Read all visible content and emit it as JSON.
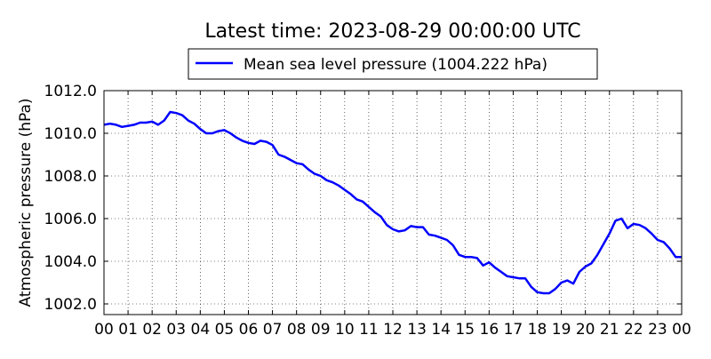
{
  "chart_data": {
    "type": "line",
    "title": "Latest time: 2023-08-29 00:00:00 UTC",
    "xlabel": "",
    "ylabel": "Atmospheric pressure (hPa)",
    "xlim": [
      0,
      24
    ],
    "ylim": [
      1001.5,
      1012.0
    ],
    "grid": true,
    "legend_position": "top-center",
    "x_tick_labels": [
      "00",
      "01",
      "02",
      "03",
      "04",
      "05",
      "06",
      "07",
      "08",
      "09",
      "10",
      "11",
      "12",
      "13",
      "14",
      "15",
      "16",
      "17",
      "18",
      "19",
      "20",
      "21",
      "22",
      "23",
      "00"
    ],
    "y_ticks": [
      1002.0,
      1004.0,
      1006.0,
      1008.0,
      1010.0,
      1012.0
    ],
    "y_tick_labels": [
      "1002.0",
      "1004.0",
      "1006.0",
      "1008.0",
      "1010.0",
      "1012.0"
    ],
    "series": [
      {
        "name": "Mean sea level pressure (1004.222 hPa)",
        "color": "#0000ff",
        "x": [
          0,
          0.25,
          0.5,
          0.75,
          1.0,
          1.25,
          1.5,
          1.75,
          2.0,
          2.25,
          2.5,
          2.75,
          3.0,
          3.25,
          3.5,
          3.75,
          4.0,
          4.25,
          4.5,
          4.75,
          5.0,
          5.25,
          5.5,
          5.75,
          6.0,
          6.25,
          6.5,
          6.75,
          7.0,
          7.25,
          7.5,
          7.75,
          8.0,
          8.25,
          8.5,
          8.75,
          9.0,
          9.25,
          9.5,
          9.75,
          10.0,
          10.25,
          10.5,
          10.75,
          11.0,
          11.25,
          11.5,
          11.75,
          12.0,
          12.25,
          12.5,
          12.75,
          13.0,
          13.25,
          13.5,
          13.75,
          14.0,
          14.25,
          14.5,
          14.75,
          15.0,
          15.25,
          15.5,
          15.75,
          16.0,
          16.25,
          16.5,
          16.75,
          17.0,
          17.25,
          17.5,
          17.75,
          18.0,
          18.25,
          18.5,
          18.75,
          19.0,
          19.25,
          19.5,
          19.75,
          20.0,
          20.25,
          20.5,
          20.75,
          21.0,
          21.25,
          21.5,
          21.75,
          22.0,
          22.25,
          22.5,
          22.75,
          23.0,
          23.25,
          23.5,
          23.75,
          24.0
        ],
        "values": [
          1010.4,
          1010.45,
          1010.4,
          1010.3,
          1010.35,
          1010.4,
          1010.5,
          1010.5,
          1010.55,
          1010.4,
          1010.6,
          1011.0,
          1010.95,
          1010.85,
          1010.6,
          1010.45,
          1010.2,
          1010.0,
          1010.0,
          1010.1,
          1010.15,
          1010.0,
          1009.8,
          1009.65,
          1009.55,
          1009.5,
          1009.65,
          1009.6,
          1009.45,
          1009.0,
          1008.9,
          1008.75,
          1008.6,
          1008.55,
          1008.3,
          1008.1,
          1008.0,
          1007.8,
          1007.7,
          1007.55,
          1007.35,
          1007.15,
          1006.9,
          1006.8,
          1006.55,
          1006.3,
          1006.1,
          1005.7,
          1005.5,
          1005.4,
          1005.45,
          1005.65,
          1005.6,
          1005.6,
          1005.25,
          1005.2,
          1005.1,
          1005.0,
          1004.75,
          1004.3,
          1004.2,
          1004.2,
          1004.15,
          1003.8,
          1003.95,
          1003.7,
          1003.5,
          1003.3,
          1003.25,
          1003.2,
          1003.2,
          1002.8,
          1002.55,
          1002.5,
          1002.5,
          1002.7,
          1003.0,
          1003.1,
          1002.95,
          1003.5,
          1003.75,
          1003.9,
          1004.3,
          1004.8,
          1005.3,
          1005.9,
          1006.0,
          1005.55,
          1005.75,
          1005.7,
          1005.55,
          1005.3,
          1005.0,
          1004.9,
          1004.6,
          1004.2,
          1004.2
        ]
      }
    ]
  }
}
